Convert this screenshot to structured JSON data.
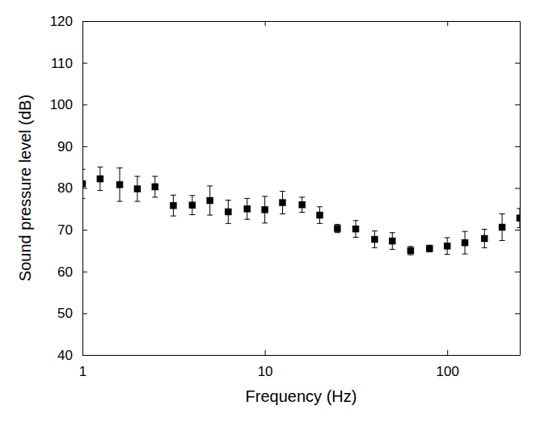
{
  "chart_data": {
    "type": "scatter",
    "x_label": "Frequency (Hz)",
    "y_label": "Sound pressure level (dB)",
    "x": [
      1,
      1.25,
      1.6,
      2,
      2.5,
      3.15,
      4,
      5,
      6.3,
      8,
      10,
      12.5,
      16,
      20,
      25,
      31.5,
      40,
      50,
      63,
      80,
      100,
      125,
      160,
      200,
      250
    ],
    "values": [
      81,
      82.2,
      80.8,
      79.8,
      80.3,
      75.8,
      75.9,
      77,
      74.3,
      75,
      74.8,
      76.5,
      76,
      73.5,
      70.3,
      70.2,
      67.7,
      67.3,
      65,
      65.5,
      66.1,
      66.9,
      67.9,
      70.6,
      72.8
    ],
    "errors": [
      3.5,
      2.8,
      4,
      3,
      2.5,
      2.5,
      2.3,
      3.5,
      2.8,
      2.5,
      3.2,
      2.7,
      1.8,
      2,
      1,
      2,
      2,
      2,
      1,
      0.8,
      2,
      2.7,
      2.2,
      3.2,
      2.3
    ],
    "color": "#000000",
    "marker": "square",
    "log": "x",
    "xlim": [
      1,
      250
    ],
    "ylim": [
      40,
      120
    ],
    "xticks": [
      1,
      10,
      100
    ],
    "yticks": [
      40,
      50,
      60,
      70,
      80,
      90,
      100,
      110,
      120
    ]
  }
}
